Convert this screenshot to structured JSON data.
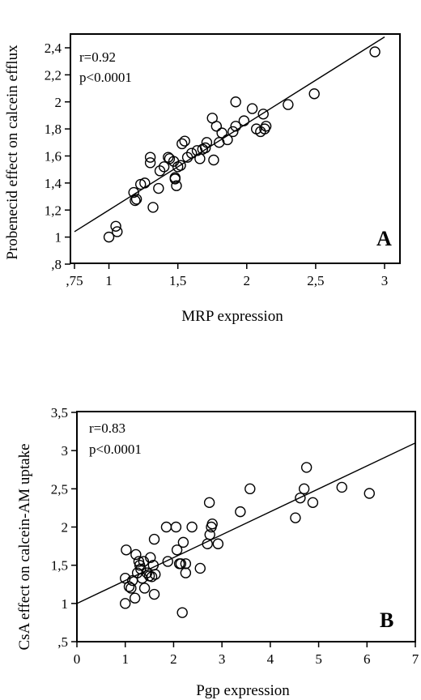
{
  "chart_data": [
    {
      "type": "scatter",
      "panel_label": "A",
      "xlabel": "MRP expression",
      "ylabel": "Probenecid effect on calcein efflux",
      "annotation": [
        "r=0.92",
        "p<0.0001"
      ],
      "xlim": [
        0.75,
        3.0
      ],
      "ylim": [
        0.8,
        2.5
      ],
      "x_ticks": [
        ",75",
        "1",
        "1,5",
        "2",
        "2,5",
        "3"
      ],
      "x_tick_values": [
        0.75,
        1.0,
        1.5,
        2.0,
        2.5,
        3.0
      ],
      "y_ticks": [
        ",8",
        "1",
        "1,2",
        "1,4",
        "1,6",
        "1,8",
        "2",
        "2,2",
        "2,4"
      ],
      "y_tick_values": [
        0.8,
        1.0,
        1.2,
        1.4,
        1.6,
        1.8,
        2.0,
        2.2,
        2.4
      ],
      "grid": false,
      "fit_line": [
        [
          0.75,
          1.04
        ],
        [
          3.0,
          2.48
        ]
      ],
      "points": [
        [
          1.0,
          1.0
        ],
        [
          1.05,
          1.08
        ],
        [
          1.06,
          1.04
        ],
        [
          1.18,
          1.33
        ],
        [
          1.2,
          1.28
        ],
        [
          1.19,
          1.27
        ],
        [
          1.23,
          1.39
        ],
        [
          1.26,
          1.4
        ],
        [
          1.3,
          1.59
        ],
        [
          1.3,
          1.55
        ],
        [
          1.32,
          1.22
        ],
        [
          1.36,
          1.36
        ],
        [
          1.37,
          1.49
        ],
        [
          1.4,
          1.52
        ],
        [
          1.43,
          1.59
        ],
        [
          1.44,
          1.58
        ],
        [
          1.47,
          1.56
        ],
        [
          1.48,
          1.43
        ],
        [
          1.48,
          1.44
        ],
        [
          1.49,
          1.38
        ],
        [
          1.5,
          1.52
        ],
        [
          1.52,
          1.53
        ],
        [
          1.53,
          1.69
        ],
        [
          1.55,
          1.71
        ],
        [
          1.57,
          1.59
        ],
        [
          1.6,
          1.62
        ],
        [
          1.64,
          1.64
        ],
        [
          1.66,
          1.58
        ],
        [
          1.68,
          1.65
        ],
        [
          1.7,
          1.66
        ],
        [
          1.71,
          1.7
        ],
        [
          1.75,
          1.88
        ],
        [
          1.76,
          1.57
        ],
        [
          1.78,
          1.82
        ],
        [
          1.8,
          1.7
        ],
        [
          1.82,
          1.77
        ],
        [
          1.86,
          1.72
        ],
        [
          1.9,
          1.78
        ],
        [
          1.92,
          2.0
        ],
        [
          1.92,
          1.82
        ],
        [
          1.98,
          1.86
        ],
        [
          2.04,
          1.95
        ],
        [
          2.07,
          1.8
        ],
        [
          2.1,
          1.78
        ],
        [
          2.12,
          1.91
        ],
        [
          2.13,
          1.8
        ],
        [
          2.14,
          1.82
        ],
        [
          2.3,
          1.98
        ],
        [
          2.49,
          2.06
        ],
        [
          2.93,
          2.37
        ]
      ]
    },
    {
      "type": "scatter",
      "panel_label": "B",
      "xlabel": "Pgp expression",
      "ylabel": "CsA effect on calcein-AM uptake",
      "annotation": [
        "r=0.83",
        "p<0.0001"
      ],
      "xlim": [
        0,
        7
      ],
      "ylim": [
        0.5,
        3.5
      ],
      "x_ticks": [
        "0",
        "1",
        "2",
        "3",
        "4",
        "5",
        "6",
        "7"
      ],
      "x_tick_values": [
        0,
        1,
        2,
        3,
        4,
        5,
        6,
        7
      ],
      "y_ticks": [
        ",5",
        "1",
        "1,5",
        "2",
        "2,5",
        "3",
        "3,5"
      ],
      "y_tick_values": [
        0.5,
        1.0,
        1.5,
        2.0,
        2.5,
        3.0,
        3.5
      ],
      "grid": false,
      "fit_line": [
        [
          0,
          1.0
        ],
        [
          7,
          3.1
        ]
      ],
      "points": [
        [
          1.0,
          1.0
        ],
        [
          1.0,
          1.33
        ],
        [
          1.02,
          1.7
        ],
        [
          1.08,
          1.22
        ],
        [
          1.12,
          1.2
        ],
        [
          1.15,
          1.3
        ],
        [
          1.2,
          1.07
        ],
        [
          1.22,
          1.64
        ],
        [
          1.25,
          1.4
        ],
        [
          1.28,
          1.55
        ],
        [
          1.3,
          1.5
        ],
        [
          1.32,
          1.45
        ],
        [
          1.35,
          1.33
        ],
        [
          1.38,
          1.55
        ],
        [
          1.4,
          1.2
        ],
        [
          1.45,
          1.4
        ],
        [
          1.5,
          1.36
        ],
        [
          1.52,
          1.6
        ],
        [
          1.55,
          1.35
        ],
        [
          1.58,
          1.5
        ],
        [
          1.6,
          1.12
        ],
        [
          1.6,
          1.84
        ],
        [
          1.62,
          1.38
        ],
        [
          1.85,
          2.0
        ],
        [
          1.88,
          1.55
        ],
        [
          2.05,
          2.0
        ],
        [
          2.07,
          1.7
        ],
        [
          2.12,
          1.52
        ],
        [
          2.15,
          1.52
        ],
        [
          2.18,
          0.88
        ],
        [
          2.2,
          1.8
        ],
        [
          2.25,
          1.52
        ],
        [
          2.25,
          1.4
        ],
        [
          2.38,
          2.0
        ],
        [
          2.55,
          1.46
        ],
        [
          2.7,
          1.78
        ],
        [
          2.74,
          2.32
        ],
        [
          2.75,
          1.9
        ],
        [
          2.78,
          2.0
        ],
        [
          2.8,
          2.04
        ],
        [
          2.92,
          1.78
        ],
        [
          3.38,
          2.2
        ],
        [
          3.58,
          2.5
        ],
        [
          4.52,
          2.12
        ],
        [
          4.62,
          2.38
        ],
        [
          4.7,
          2.5
        ],
        [
          4.75,
          2.78
        ],
        [
          4.88,
          2.32
        ],
        [
          5.48,
          2.52
        ],
        [
          6.05,
          2.44
        ]
      ]
    }
  ]
}
